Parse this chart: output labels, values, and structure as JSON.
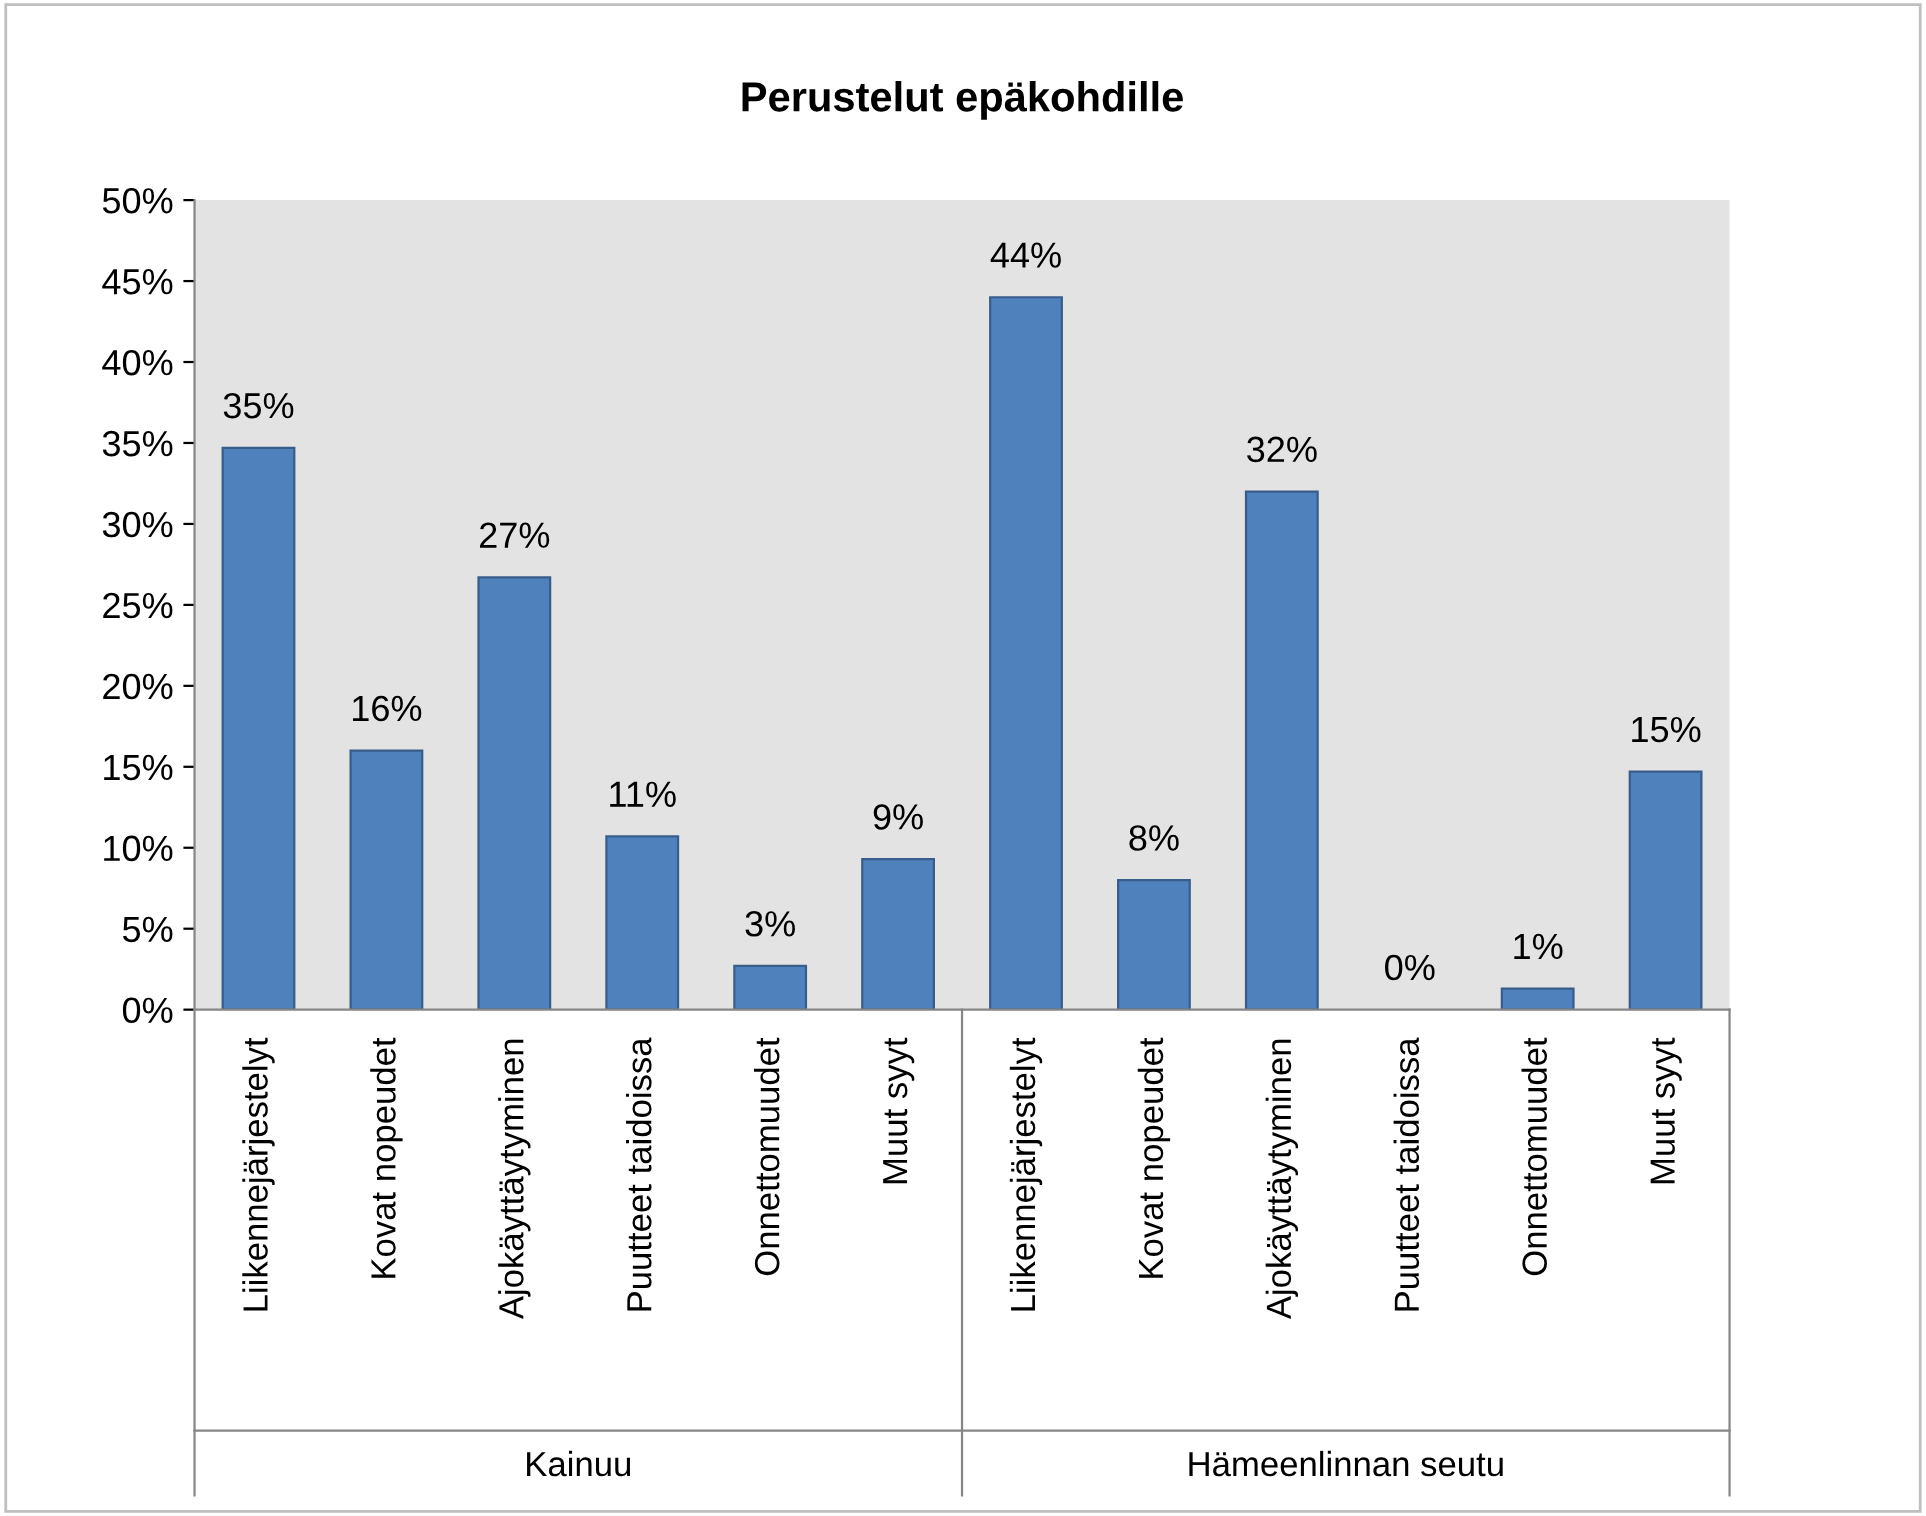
{
  "chart_data": {
    "type": "bar",
    "title": "Perustelut epäkohdille",
    "categories": [
      "Liikennejärjestelyt",
      "Kovat nopeudet",
      "Ajokäyttäytyminen",
      "Puutteet taidoissa",
      "Onnettomuudet",
      "Muut syyt",
      "Liikennejärjestelyt",
      "Kovat nopeudet",
      "Ajokäyttäytyminen",
      "Puutteet taidoissa",
      "Onnettomuudet",
      "Muut syyt"
    ],
    "values": [
      34.7,
      16.0,
      26.7,
      10.7,
      2.7,
      9.3,
      44.0,
      8.0,
      32.0,
      0,
      1.3,
      14.7
    ],
    "value_labels": [
      "35%",
      "16%",
      "27%",
      "11%",
      "3%",
      "9%",
      "44%",
      "8%",
      "32%",
      "0%",
      "1%",
      "15%"
    ],
    "color": "#4f81bd",
    "annotations": [
      "Kainuu",
      "Hämeenlinnan seutu"
    ],
    "ylim": [
      0,
      50
    ],
    "yticks": [
      {
        "value": 0,
        "label": "0%"
      },
      {
        "value": 5,
        "label": "5%"
      },
      {
        "value": 10,
        "label": "10%"
      },
      {
        "value": 15,
        "label": "15%"
      },
      {
        "value": 20,
        "label": "20%"
      },
      {
        "value": 25,
        "label": "25%"
      },
      {
        "value": 30,
        "label": "30%"
      },
      {
        "value": 35,
        "label": "35%"
      },
      {
        "value": 40,
        "label": "40%"
      },
      {
        "value": 45,
        "label": "45%"
      },
      {
        "value": 50,
        "label": "50%"
      }
    ],
    "grid": false,
    "legend": false
  }
}
